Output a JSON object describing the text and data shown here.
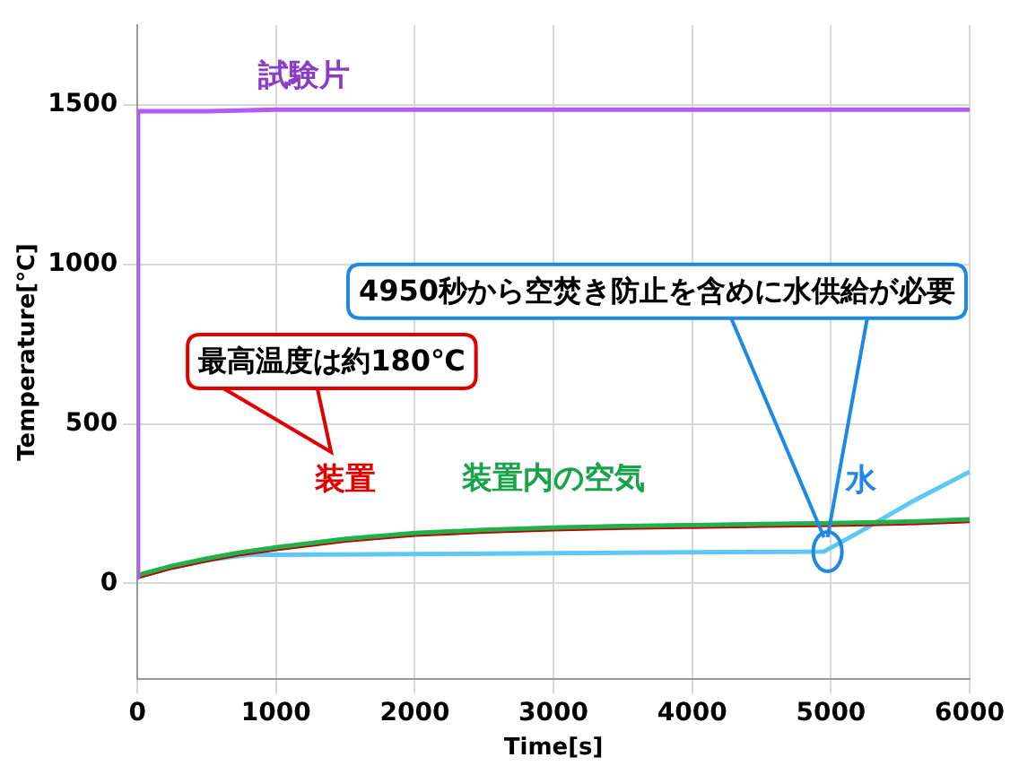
{
  "chart_data": {
    "type": "line",
    "xlabel": "Time[s]",
    "ylabel": "Temperature[℃]",
    "xlim": [
      0,
      6000
    ],
    "xticks": [
      0,
      1000,
      2000,
      3000,
      4000,
      5000,
      6000
    ],
    "ylim": [
      -300,
      1750
    ],
    "yticks": [
      0,
      500,
      1000,
      1500
    ],
    "grid": true,
    "legend": false,
    "marker": "none",
    "series": [
      {
        "name": "試験片",
        "color": "#b25cf5",
        "x": [
          0,
          5,
          500,
          1000,
          2000,
          3000,
          4000,
          5000,
          6000
        ],
        "values": [
          20,
          1480,
          1480,
          1485,
          1485,
          1485,
          1485,
          1485,
          1485
        ]
      },
      {
        "name": "装置内の空気",
        "color": "#22b04b",
        "x": [
          0,
          250,
          500,
          750,
          1000,
          1500,
          2000,
          2500,
          3000,
          3500,
          4000,
          4500,
          5000,
          5500,
          6000
        ],
        "values": [
          26,
          55,
          78,
          98,
          113,
          140,
          158,
          168,
          175,
          180,
          183,
          186,
          189,
          193,
          201
        ]
      },
      {
        "name": "装置",
        "color": "#c00000",
        "x": [
          0,
          250,
          500,
          750,
          1000,
          1500,
          2000,
          2500,
          3000,
          3500,
          4000,
          4500,
          5000,
          5500,
          6000
        ],
        "values": [
          20,
          50,
          73,
          93,
          108,
          135,
          153,
          163,
          170,
          175,
          178,
          181,
          184,
          188,
          196
        ]
      },
      {
        "name": "水",
        "color": "#5ec8f5",
        "x": [
          0,
          250,
          500,
          800,
          1000,
          2000,
          3000,
          4000,
          4950,
          5200,
          5600,
          6000
        ],
        "values": [
          20,
          50,
          73,
          90,
          90,
          92,
          95,
          98,
          100,
          160,
          260,
          350
        ]
      }
    ],
    "annotations": [
      {
        "text": "4950秒から空焚き防止を含めに水供給が必要",
        "x": 4950,
        "y": 100
      },
      "最高温度は約180℃"
    ]
  }
}
